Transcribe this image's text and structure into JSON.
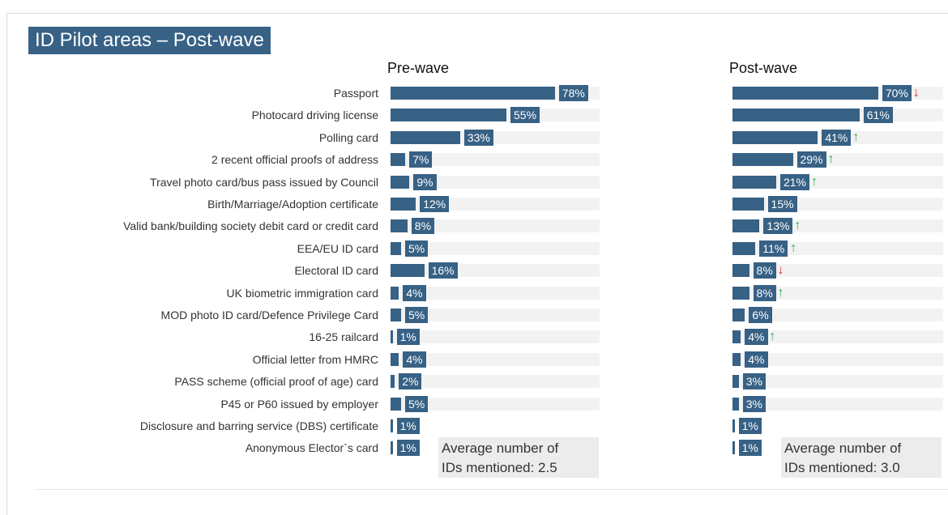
{
  "title": "ID Pilot areas – Post-wave",
  "colors": {
    "bar": "#376185",
    "track": "#f2f2f2",
    "up": "#2eaa4f",
    "down": "#e8231f"
  },
  "chart_data": [
    {
      "type": "bar",
      "orientation": "horizontal",
      "title": "Pre-wave",
      "xlim": [
        0,
        100
      ],
      "unit": "%",
      "categories": [
        "Passport",
        "Photocard driving license",
        "Polling card",
        "2 recent official proofs of address",
        "Travel photo card/bus pass issued by Council",
        "Birth/Marriage/Adoption certificate",
        "Valid bank/building society debit card or credit card",
        "EEA/EU ID card",
        "Electoral ID card",
        "UK biometric immigration card",
        "MOD photo ID card/Defence Privilege Card",
        "16-25 railcard",
        "Official letter from HMRC",
        "PASS scheme (official proof of age) card",
        "P45 or P60 issued by employer",
        "Disclosure and barring service (DBS) certificate",
        "Anonymous Elector`s card"
      ],
      "values": [
        78,
        55,
        33,
        7,
        9,
        12,
        8,
        5,
        16,
        4,
        5,
        1,
        4,
        2,
        5,
        1,
        1
      ],
      "labels": [
        "78%",
        "55%",
        "33%",
        "7%",
        "9%",
        "12%",
        "8%",
        "5%",
        "16%",
        "4%",
        "5%",
        "1%",
        "4%",
        "2%",
        "5%",
        "1%",
        "1%"
      ],
      "note_line1": "Average number of",
      "note_line2": "IDs mentioned: 2.5"
    },
    {
      "type": "bar",
      "orientation": "horizontal",
      "title": "Post-wave",
      "xlim": [
        0,
        100
      ],
      "unit": "%",
      "categories": [
        "Passport",
        "Photocard driving license",
        "Polling card",
        "2 recent official proofs of address",
        "Travel photo card/bus pass issued by Council",
        "Birth/Marriage/Adoption certificate",
        "Valid bank/building society debit card or credit card",
        "EEA/EU ID card",
        "Electoral ID card",
        "UK biometric immigration card",
        "MOD photo ID card/Defence Privilege Card",
        "16-25 railcard",
        "Official letter from HMRC",
        "PASS scheme (official proof of age) card",
        "P45 or P60 issued by employer",
        "Disclosure and barring service (DBS) certificate",
        "Anonymous Elector`s card"
      ],
      "values": [
        70,
        61,
        41,
        29,
        21,
        15,
        13,
        11,
        8,
        8,
        6,
        4,
        4,
        3,
        3,
        1,
        1
      ],
      "labels": [
        "70%",
        "61%",
        "41%",
        "29%",
        "21%",
        "15%",
        "13%",
        "11%",
        "8%",
        "8%",
        "6%",
        "4%",
        "4%",
        "3%",
        "3%",
        "1%",
        "1%"
      ],
      "change": [
        "down",
        "",
        "up",
        "up",
        "up",
        "",
        "up",
        "up",
        "down",
        "up",
        "",
        "up",
        "",
        "",
        "",
        "",
        ""
      ],
      "arrow_glyphs": {
        "up": "↑",
        "down": "↓"
      },
      "note_line1": "Average number of",
      "note_line2": "IDs mentioned: 3.0"
    }
  ]
}
